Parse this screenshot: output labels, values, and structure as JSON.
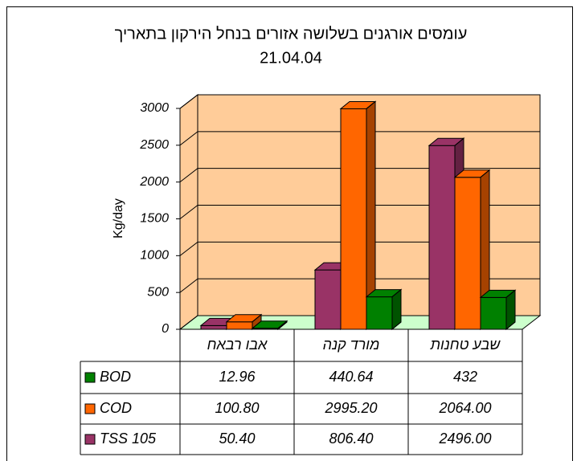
{
  "chart_data": {
    "type": "bar3d",
    "title": "עומסים אורגנים בשלושה אזורים בנחל הירקון בתאריך",
    "subtitle": "21.04.04",
    "y_label": "Kg/day",
    "categories": [
      "אבו רבאח",
      "מורד קנה",
      "שבע טחנות"
    ],
    "series": [
      {
        "name": "BOD",
        "color": "#008000",
        "values": [
          12.96,
          440.64,
          432
        ],
        "value_labels": [
          "12.96",
          "440.64",
          "432"
        ]
      },
      {
        "name": "COD",
        "color": "#ff6600",
        "values": [
          100.8,
          2995.2,
          2064
        ],
        "value_labels": [
          "100.80",
          "2995.20",
          "2064.00"
        ]
      },
      {
        "name": "TSS 105",
        "color": "#993366",
        "values": [
          50.4,
          806.4,
          2496
        ],
        "value_labels": [
          "50.40",
          "806.40",
          "2496.00"
        ]
      }
    ],
    "ylim": [
      0,
      3000
    ],
    "yticks": [
      0,
      500,
      1000,
      1500,
      2000,
      2500,
      3000
    ],
    "grid": true,
    "wall_color": "#ffcc99",
    "floor_color": "#ccffcc"
  }
}
